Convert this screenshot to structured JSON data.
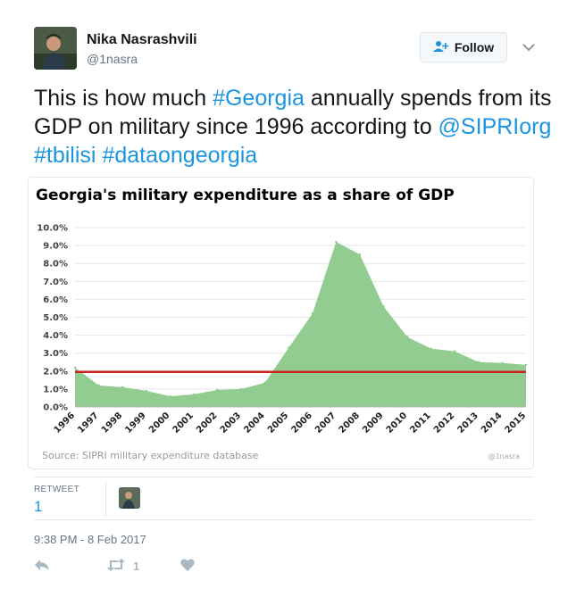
{
  "user": {
    "name": "Nika Nasrashvili",
    "handle": "@1nasra",
    "follow_label": "Follow"
  },
  "tweet": {
    "text_parts": [
      {
        "t": "This is how much ",
        "link": false
      },
      {
        "t": "#Georgia",
        "link": true
      },
      {
        "t": " annually spends from its GDP on military since 1996 according to ",
        "link": false
      },
      {
        "t": "@SIPRIorg",
        "link": true
      },
      {
        "t": " ",
        "link": false
      },
      {
        "t": "#tbilisi",
        "link": true
      },
      {
        "t": " ",
        "link": false
      },
      {
        "t": "#dataongeorgia",
        "link": true
      }
    ]
  },
  "chart_data": {
    "type": "area",
    "title": "Georgia's military expenditure as a share of GDP",
    "x": [
      "1996",
      "1997",
      "1998",
      "1999",
      "2000",
      "2001",
      "2002",
      "2003",
      "2004",
      "2005",
      "2006",
      "2007",
      "2008",
      "2009",
      "2010",
      "2011",
      "2012",
      "2013",
      "2014",
      "2015"
    ],
    "series": [
      {
        "values": [
          2.2,
          1.2,
          1.1,
          0.9,
          0.6,
          0.7,
          0.95,
          1.0,
          1.35,
          3.3,
          5.2,
          9.2,
          8.5,
          5.6,
          3.9,
          3.25,
          3.1,
          2.5,
          2.45,
          2.35
        ],
        "color": "#8cc98b"
      },
      {
        "values": [
          1.95,
          1.95,
          1.95,
          1.95,
          1.95,
          1.95,
          1.95,
          1.95,
          1.95,
          1.95,
          1.95,
          1.95,
          1.95,
          1.95,
          1.95,
          1.95,
          1.95,
          1.95,
          1.95,
          1.95
        ],
        "color": "#c8241d"
      }
    ],
    "y_ticks": [
      "0.0%",
      "1.0%",
      "2.0%",
      "3.0%",
      "4.0%",
      "5.0%",
      "6.0%",
      "7.0%",
      "8.0%",
      "9.0%",
      "10.0%"
    ],
    "ylim": [
      0,
      10
    ],
    "grid": true,
    "source": "Source: SIPRI military expenditure database",
    "credit": "@1nasra"
  },
  "retweets": {
    "label": "RETWEET",
    "count": "1"
  },
  "timestamp": "9:38 PM - 8 Feb 2017",
  "actions": {
    "retweet_count": "1"
  },
  "icons": {
    "reply": "reply-icon",
    "retweet": "retweet-icon",
    "like": "heart-icon",
    "follow": "add-user-icon",
    "caret": "chevron-down-icon"
  },
  "colors": {
    "link": "#1b95e0",
    "area": "#8cc98b",
    "line": "#c8241d"
  }
}
